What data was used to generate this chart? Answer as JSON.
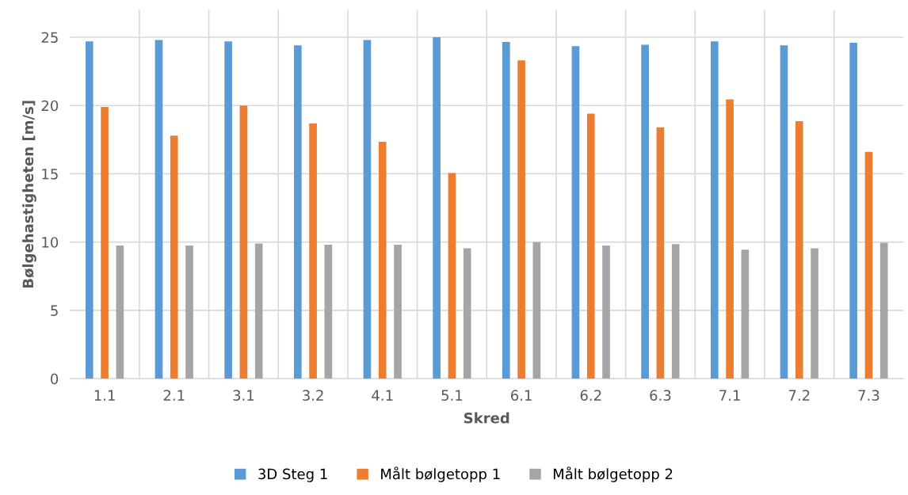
{
  "chart_data": {
    "type": "bar",
    "xlabel": "Skred",
    "ylabel": "Bølgehastigheten [m/s]",
    "categories": [
      "1.1",
      "2.1",
      "3.1",
      "3.2",
      "4.1",
      "5.1",
      "6.1",
      "6.2",
      "6.3",
      "7.1",
      "7.2",
      "7.3"
    ],
    "series": [
      {
        "name": "3D Steg 1",
        "color": "#5b9bd5",
        "values": [
          24.7,
          24.8,
          24.7,
          24.4,
          24.8,
          25.0,
          24.65,
          24.35,
          24.45,
          24.7,
          24.4,
          24.6
        ]
      },
      {
        "name": "Målt bølgetopp 1",
        "color": "#ed7d31",
        "values": [
          19.9,
          17.8,
          20.0,
          18.7,
          17.35,
          15.05,
          23.3,
          19.4,
          18.4,
          20.45,
          18.85,
          16.6
        ]
      },
      {
        "name": "Målt bølgetopp 2",
        "color": "#a5a5a5",
        "values": [
          9.75,
          9.75,
          9.9,
          9.8,
          9.8,
          9.55,
          10.0,
          9.75,
          9.85,
          9.45,
          9.55,
          9.95
        ]
      }
    ],
    "ylim": [
      0,
      27
    ],
    "yticks": [
      0,
      5,
      10,
      15,
      20,
      25
    ],
    "grid": true,
    "legend": "bottom"
  }
}
